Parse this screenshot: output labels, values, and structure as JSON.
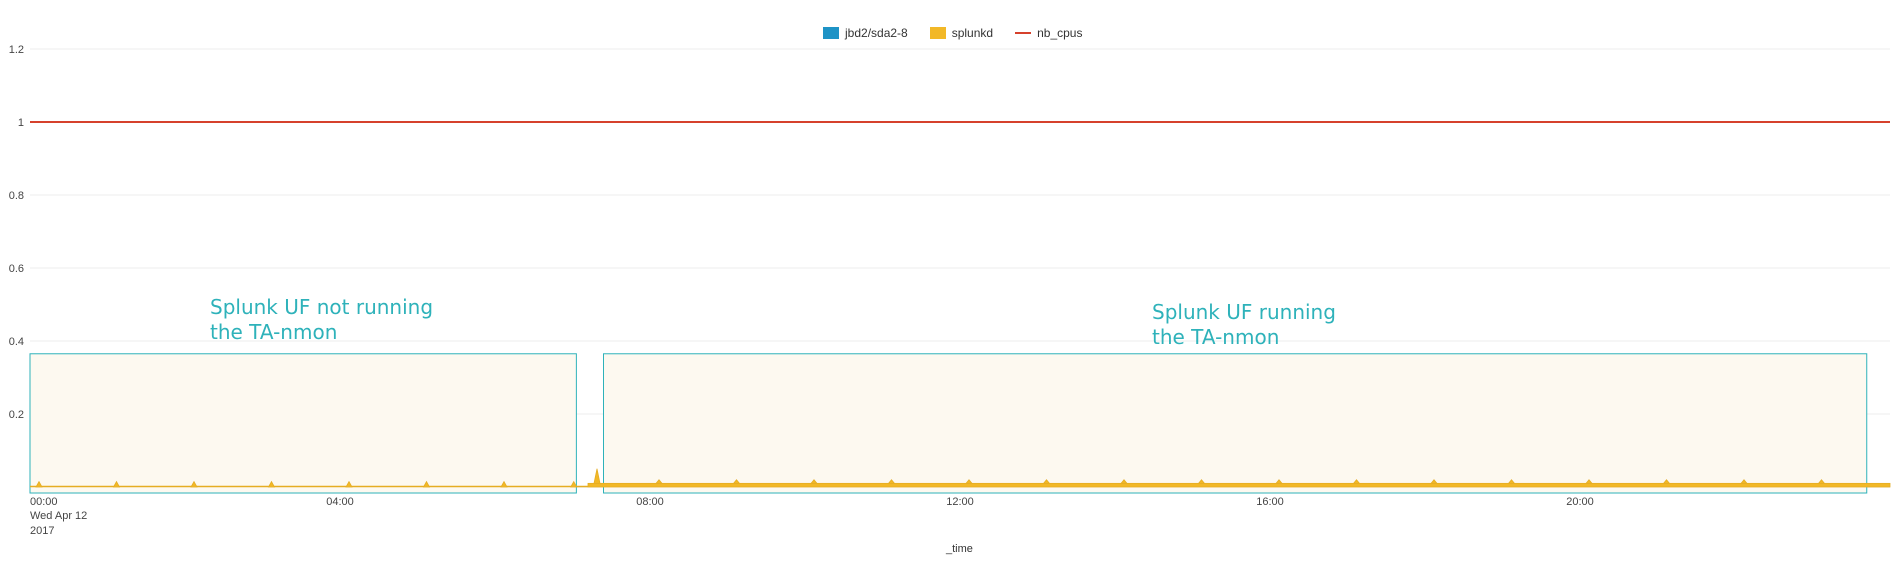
{
  "chart_data": {
    "type": "area",
    "x_axis": {
      "title": "_time",
      "tick_labels": [
        "00:00",
        "04:00",
        "08:00",
        "12:00",
        "16:00",
        "20:00"
      ],
      "tick_hours": [
        0,
        4,
        8,
        12,
        16,
        20
      ],
      "date_label_lines": [
        "Wed Apr 12",
        "2017"
      ],
      "range_hours": [
        0,
        24
      ]
    },
    "y_axis": {
      "tick_labels": [
        "0.2",
        "0.4",
        "0.6",
        "0.8",
        "1",
        "1.2"
      ],
      "ticks": [
        0.2,
        0.4,
        0.6,
        0.8,
        1.0,
        1.2
      ],
      "range": [
        0,
        1.2
      ]
    },
    "grid": true,
    "legend_position": "top",
    "series": [
      {
        "name": "jbd2/sda2-8",
        "type": "area",
        "color": "#1e93c6",
        "values": "~0"
      },
      {
        "name": "splunkd",
        "type": "area",
        "color": "#f2b827",
        "baseline_hours": [
          0,
          7.2
        ],
        "baseline_value": 0.0,
        "baseline_hours_running": [
          7.2,
          24
        ],
        "baseline_value_running": 0.01,
        "spike_hours": [
          0,
          1,
          2,
          3,
          4,
          5,
          6,
          6.9,
          7.2,
          8,
          9,
          10,
          11,
          12,
          13,
          14,
          15,
          16,
          17,
          18,
          19,
          20,
          21,
          22,
          23
        ],
        "spike_values": [
          0.015,
          0.015,
          0.015,
          0.015,
          0.015,
          0.015,
          0.015,
          0.015,
          0.05,
          0.02,
          0.02,
          0.02,
          0.02,
          0.02,
          0.02,
          0.02,
          0.02,
          0.02,
          0.02,
          0.02,
          0.02,
          0.02,
          0.02,
          0.02,
          0.02
        ]
      },
      {
        "name": "nb_cpus",
        "type": "line",
        "color": "#d6412c",
        "values_constant": 1
      }
    ],
    "annotations": [
      {
        "text": "Splunk UF not running\nthe TA-nmon",
        "range_hours": [
          0,
          7.05
        ],
        "y_top": 0.365
      },
      {
        "text": "Splunk UF running\nthe TA-nmon",
        "range_hours": [
          7.4,
          23.7
        ],
        "y_top": 0.365
      }
    ]
  }
}
